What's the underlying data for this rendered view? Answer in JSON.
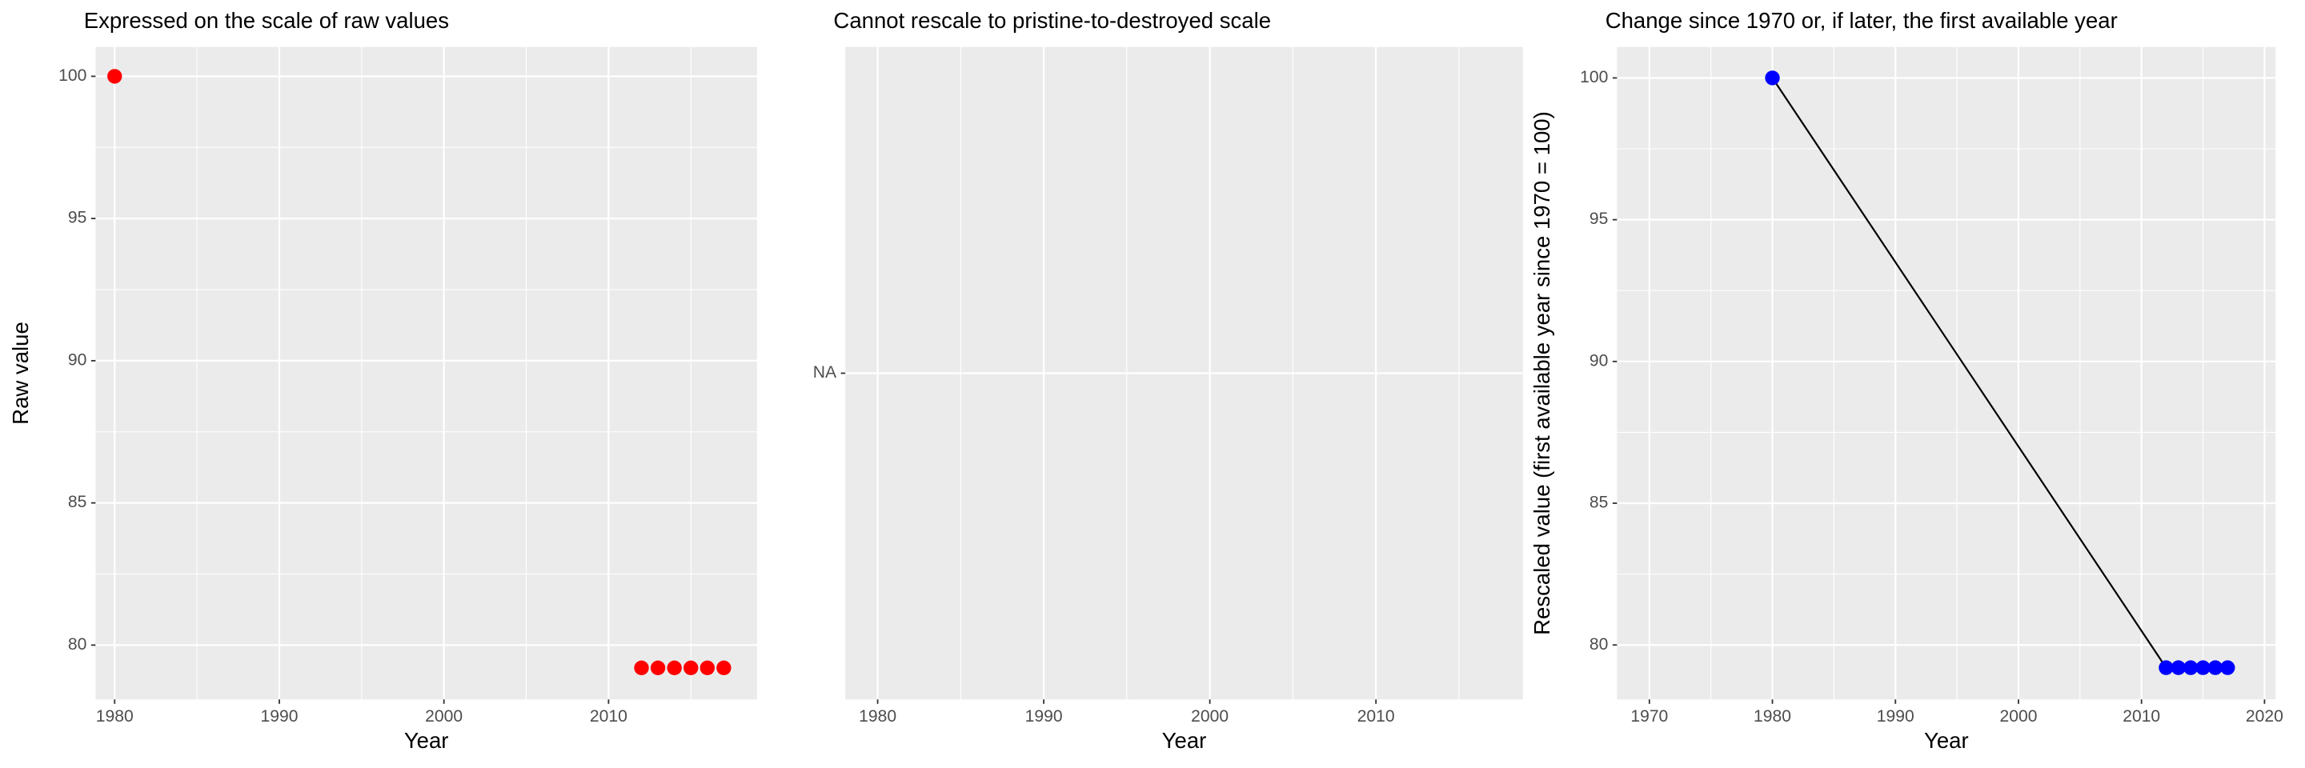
{
  "chart_data": [
    {
      "type": "scatter",
      "title": "Expressed on the scale of raw values",
      "xlabel": "Year",
      "ylabel": "Raw value",
      "x": [
        1980,
        2012,
        2013,
        2014,
        2015,
        2016,
        2017
      ],
      "values": [
        100,
        79.2,
        79.2,
        79.2,
        79.2,
        79.2,
        79.2
      ],
      "color": "#ff0000",
      "xlim": [
        1978.84,
        2019.02
      ],
      "xticks": [
        1980,
        1990,
        2000,
        2010
      ],
      "ylim": [
        78.09,
        101.03
      ],
      "yticks": [
        80,
        85,
        90,
        95,
        100
      ],
      "grid": true
    },
    {
      "type": "scatter",
      "title": "Cannot rescale to pristine-to-destroyed scale",
      "xlabel": "Year",
      "x": [],
      "values": [],
      "color": "#ff0000",
      "xlim": [
        1978.05,
        2018.85
      ],
      "xticks": [
        1980,
        1990,
        2000,
        2010
      ],
      "ycategories": [
        "NA"
      ],
      "grid": true
    },
    {
      "type": "line",
      "title": "Change since 1970 or, if later, the first available year",
      "xlabel": "Year",
      "ylabel": "Rescaled value (first available year since 1970 = 100)",
      "x": [
        1980,
        2012,
        2013,
        2014,
        2015,
        2016,
        2017
      ],
      "values": [
        100,
        79.2,
        79.2,
        79.2,
        79.2,
        79.2,
        79.2
      ],
      "color": "#0000ff",
      "line_color": "#000000",
      "xlim": [
        1967.37,
        2020.9
      ],
      "xticks": [
        1970,
        1980,
        1990,
        2000,
        2010,
        2020
      ],
      "ylim": [
        78.08,
        101.09
      ],
      "yticks": [
        80,
        85,
        90,
        95,
        100
      ],
      "grid": true
    }
  ]
}
